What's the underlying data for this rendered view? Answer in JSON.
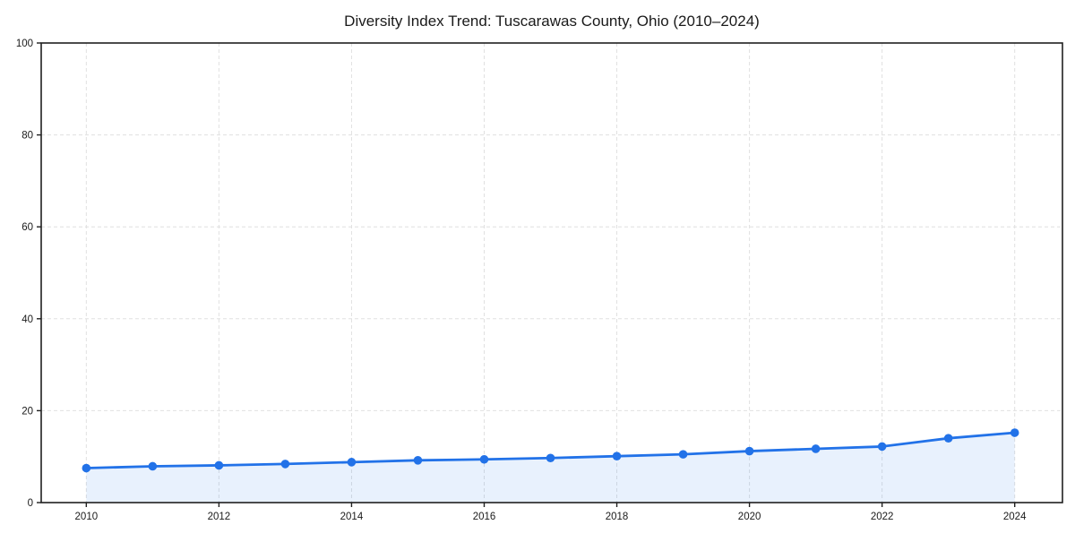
{
  "title": "Diversity Index Trend: Tuscarawas County, Ohio (2010–2024)",
  "chart_data": {
    "type": "line",
    "area_fill": true,
    "title": "Diversity Index Trend: Tuscarawas County, Ohio (2010–2024)",
    "xlabel": "",
    "ylabel": "",
    "x": [
      2010,
      2011,
      2012,
      2013,
      2014,
      2015,
      2016,
      2017,
      2018,
      2019,
      2020,
      2021,
      2022,
      2023,
      2024
    ],
    "series": [
      {
        "name": "Diversity Index",
        "values": [
          7.5,
          7.9,
          8.1,
          8.4,
          8.8,
          9.2,
          9.4,
          9.7,
          10.1,
          10.5,
          11.2,
          11.7,
          12.2,
          14.0,
          15.2
        ]
      }
    ],
    "xlim": [
      2009.32,
      2024.72
    ],
    "ylim": [
      0,
      100
    ],
    "xticks": [
      2010,
      2012,
      2014,
      2016,
      2018,
      2020,
      2022,
      2024
    ],
    "xtick_labels": [
      "2010",
      "2012",
      "2014",
      "2016",
      "2018",
      "2020",
      "2022",
      "2024"
    ],
    "yticks": [
      0,
      20,
      40,
      60,
      80,
      100
    ],
    "ytick_labels": [
      "0",
      "20",
      "40",
      "60",
      "80",
      "100"
    ],
    "grid": true,
    "legend": false,
    "colors": {
      "line": "#2272e8",
      "marker": "#2272e8",
      "fill": "#2272e8",
      "fill_opacity": "0.1",
      "grid": "#e0e0e0",
      "spine": "#1f1f1f",
      "text": "#1a1a1a",
      "background": "#ffffff"
    },
    "marker": "circle",
    "legend_position": "none"
  }
}
